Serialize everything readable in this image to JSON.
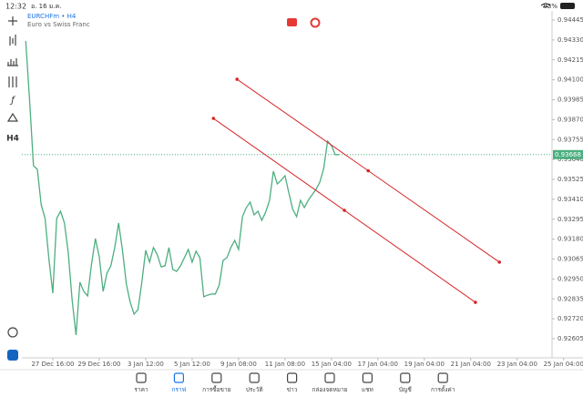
{
  "status_bar": {
    "time": "12:32",
    "date": "อ. 16 ม.ค.",
    "battery": "93%"
  },
  "symbol": {
    "name": "EURCHFm • H4",
    "description": "Euro vs Swiss Franc"
  },
  "toolbar": {
    "timeframe": "H4"
  },
  "chart_data": {
    "type": "line",
    "color": "#4caf80",
    "x": [
      0,
      1,
      2,
      3,
      4,
      5,
      6,
      7,
      8,
      9,
      10,
      11,
      12,
      13,
      14,
      15,
      16,
      17,
      18,
      19,
      20,
      21,
      22,
      23,
      24,
      25,
      26,
      27,
      28,
      29,
      30,
      31,
      32,
      33,
      34,
      35,
      36,
      37,
      38,
      39,
      40,
      41,
      42,
      43,
      44,
      45,
      46,
      47,
      48,
      49,
      50,
      51,
      52,
      53,
      54,
      55,
      56,
      57,
      58,
      59,
      60,
      61,
      62,
      63,
      64,
      65,
      66,
      67,
      68,
      69,
      70,
      71,
      72,
      73,
      74,
      75,
      76,
      77,
      78,
      79,
      80,
      81
    ],
    "values": [
      0.94324,
      0.93982,
      0.93604,
      0.93583,
      0.93378,
      0.93299,
      0.93062,
      0.92868,
      0.93299,
      0.93341,
      0.93273,
      0.93099,
      0.92826,
      0.92626,
      0.92931,
      0.92878,
      0.92852,
      0.93036,
      0.93183,
      0.93078,
      0.92878,
      0.92984,
      0.93026,
      0.93131,
      0.93273,
      0.93115,
      0.9292,
      0.92815,
      0.92747,
      0.92773,
      0.92931,
      0.93115,
      0.93047,
      0.93131,
      0.93089,
      0.9302,
      0.93026,
      0.93131,
      0.93005,
      0.92994,
      0.93026,
      0.93073,
      0.9312,
      0.93047,
      0.9311,
      0.93073,
      0.92847,
      0.92857,
      0.92863,
      0.92863,
      0.92915,
      0.93057,
      0.93073,
      0.93131,
      0.93173,
      0.9312,
      0.9331,
      0.93362,
      0.93394,
      0.9332,
      0.93341,
      0.93288,
      0.93336,
      0.93404,
      0.93572,
      0.93499,
      0.9352,
      0.93546,
      0.93446,
      0.93352,
      0.9331,
      0.93404,
      0.93362,
      0.93404,
      0.93436,
      0.93467,
      0.93509,
      0.93588,
      0.93746,
      0.9372,
      0.93667,
      0.93668
    ],
    "xlim": [
      -1,
      140
    ],
    "ylim": [
      0.92605,
      0.94445
    ],
    "xticks": [
      {
        "value": 7,
        "label": "27 Dec 16:00"
      },
      {
        "value": 19,
        "label": "29 Dec 16:00"
      },
      {
        "value": 31,
        "label": "3 Jan 12:00"
      },
      {
        "value": 43,
        "label": "5 Jan 12:00"
      },
      {
        "value": 55,
        "label": "9 Jan 08:00"
      },
      {
        "value": 67,
        "label": "11 Jan 08:00"
      },
      {
        "value": 79,
        "label": "15 Jan 04:00"
      },
      {
        "value": 91,
        "label": "17 Jan 04:00"
      },
      {
        "value": 103,
        "label": "19 Jan 04:00"
      },
      {
        "value": 115,
        "label": "21 Jan 04:00"
      },
      {
        "value": 127,
        "label": "23 Jan 04:00"
      },
      {
        "value": 139,
        "label": "25 Jan 04:00"
      }
    ],
    "yticks": [
      0.94445,
      {
        "value": 0.9433,
        "label": "0.94330"
      },
      0.94215,
      {
        "value": 0.941,
        "label": "0.94100"
      },
      0.93985,
      {
        "value": 0.9387,
        "label": "0.93870"
      },
      0.93755,
      {
        "value": 0.9364,
        "label": "0.93640"
      },
      0.93525,
      {
        "value": 0.9341,
        "label": "0.93410"
      },
      0.93295,
      {
        "value": 0.9318,
        "label": "0.93180"
      },
      0.93065,
      {
        "value": 0.9295,
        "label": "0.92950"
      },
      0.92835,
      {
        "value": 0.9272,
        "label": "0.92720"
      },
      0.92605
    ],
    "current_price": 0.93668,
    "current_price_color": "#4caf80",
    "trendlines": [
      {
        "color": "#d62728",
        "x": [
          54.6,
          122.4
        ],
        "y": [
          0.94103,
          0.93047
        ]
      },
      {
        "color": "#d62728",
        "x": [
          48.5,
          116.2
        ],
        "y": [
          0.93877,
          0.92815
        ]
      }
    ]
  },
  "nav": {
    "items": [
      "ราคา",
      "กราฟ",
      "การซื้อขาย",
      "ประวัติ",
      "ข่าว",
      "กล่องจดหมาย",
      "แชท",
      "บัญชี",
      "การตั้งค่า"
    ],
    "active": 1
  }
}
